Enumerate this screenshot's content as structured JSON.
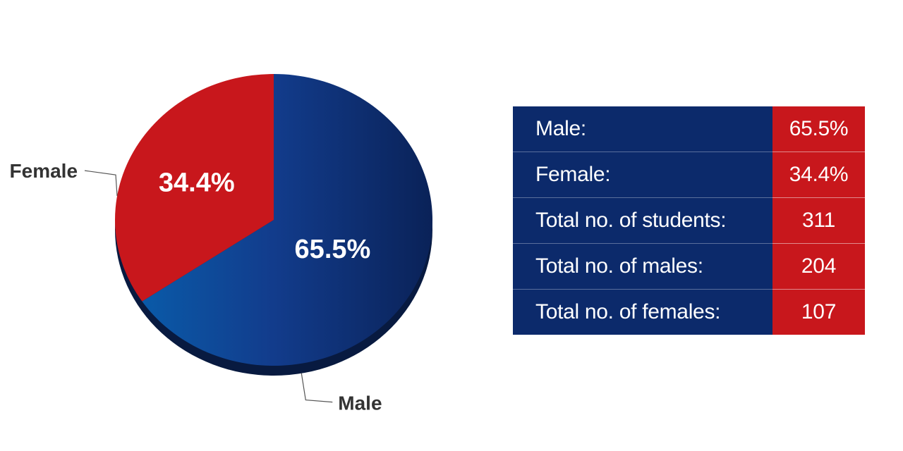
{
  "chart_data": {
    "type": "pie",
    "slices": [
      {
        "label": "Male",
        "value": 65.5,
        "display": "65.5%",
        "color": "#0c2a6b"
      },
      {
        "label": "Female",
        "value": 34.4,
        "display": "34.4%",
        "color": "#c8171c"
      }
    ]
  },
  "stats": {
    "rows": [
      {
        "label": "Male:",
        "value": "65.5%"
      },
      {
        "label": "Female:",
        "value": "34.4%"
      },
      {
        "label": "Total no. of students:",
        "value": "311"
      },
      {
        "label": "Total no. of males:",
        "value": "204"
      },
      {
        "label": "Total no. of females:",
        "value": "107"
      }
    ]
  },
  "colors": {
    "male": "#0c2a6b",
    "female": "#c8171c",
    "label_text": "#333333"
  }
}
